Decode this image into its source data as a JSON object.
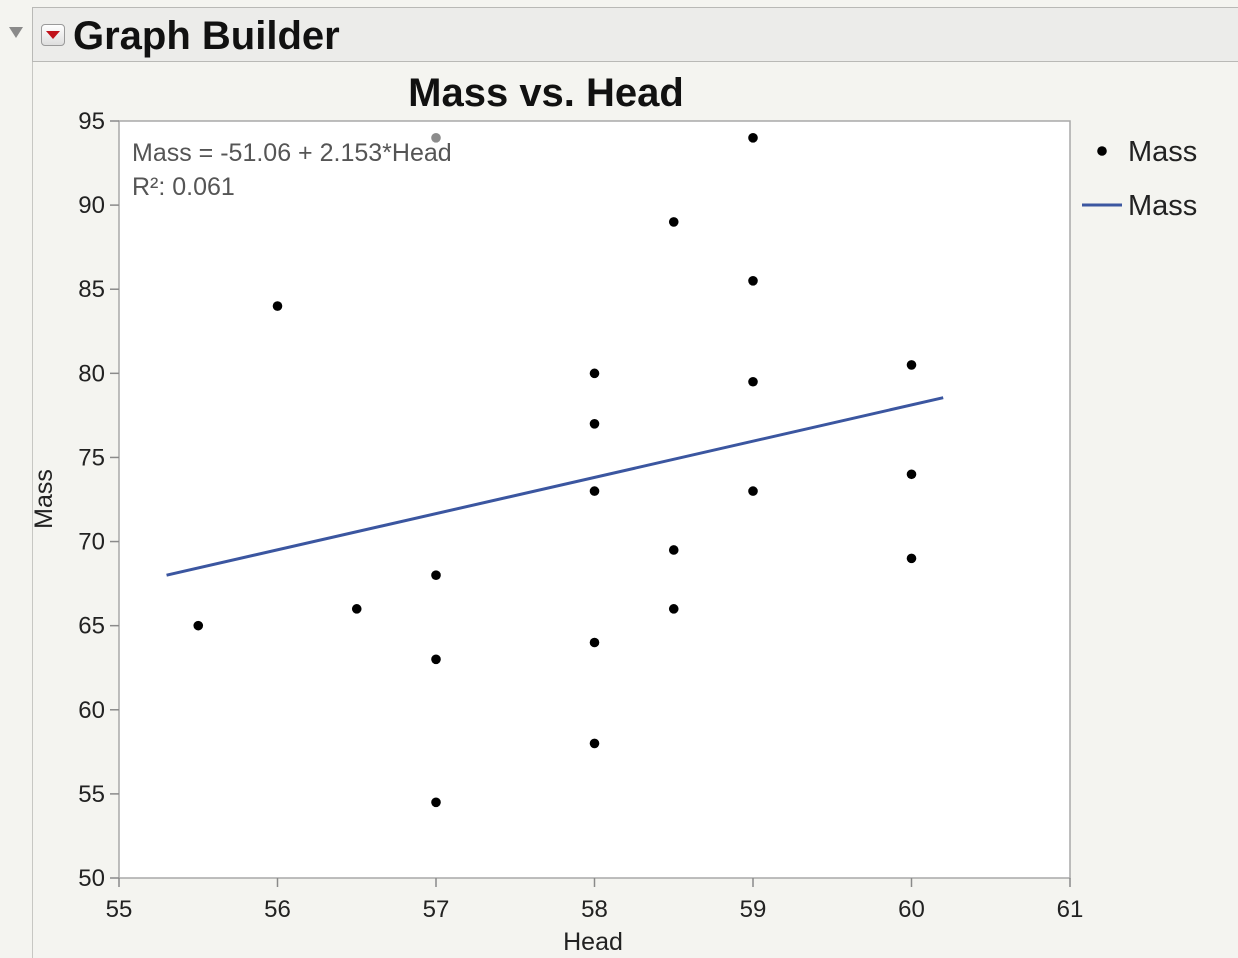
{
  "header": {
    "title": "Graph Builder"
  },
  "chart_data": {
    "type": "scatter",
    "title": "Mass vs. Head",
    "xlabel": "Head",
    "ylabel": "Mass",
    "xlim": [
      55,
      61
    ],
    "ylim": [
      50,
      95
    ],
    "xticks": [
      55,
      56,
      57,
      58,
      59,
      60,
      61
    ],
    "yticks": [
      50,
      55,
      60,
      65,
      70,
      75,
      80,
      85,
      90,
      95
    ],
    "grid": false,
    "legend_position": "right",
    "series": [
      {
        "name": "Mass",
        "kind": "points",
        "color": "#000000",
        "x": [
          55.5,
          56,
          56.5,
          57,
          57,
          57,
          57,
          58,
          58,
          58,
          58,
          58,
          58.5,
          58.5,
          58.5,
          59,
          59,
          59,
          59,
          60,
          60,
          60
        ],
        "y": [
          65,
          84,
          66,
          94,
          68,
          63,
          54.5,
          80,
          77,
          73,
          64,
          58,
          89,
          69.5,
          66,
          94,
          85.5,
          79.5,
          73,
          80.5,
          74,
          69
        ]
      },
      {
        "name": "Mass",
        "kind": "fit-line",
        "color": "#3b56a0",
        "x": [
          55.3,
          60.2
        ],
        "intercept": -51.06,
        "slope": 2.153
      }
    ],
    "annotation": {
      "equation": "Mass = -51.06 + 2.153*Head",
      "r2": "R²: 0.061"
    }
  }
}
